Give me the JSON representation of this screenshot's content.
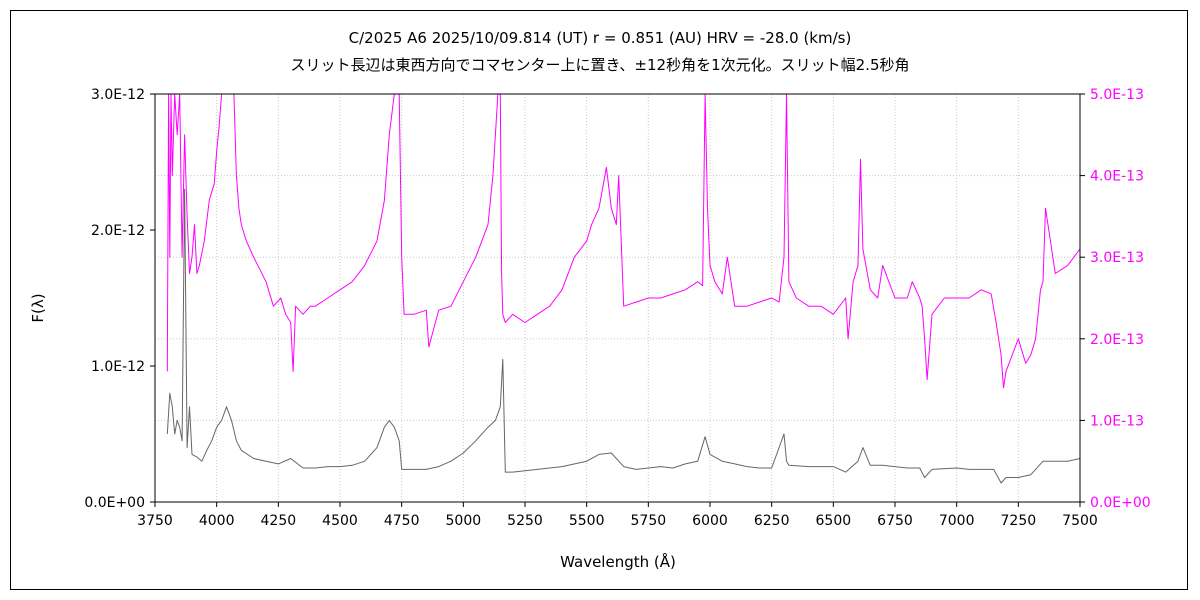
{
  "chart_data": {
    "type": "line",
    "title": "C/2025 A6    2025/10/09.814 (UT)    r = 0.851 (AU)    HRV = -28.0 (km/s)",
    "subtitle": "スリット長辺は東西方向でコマセンター上に置き、±12秒角を1次元化。スリット幅2.5秒角",
    "xlabel": "Wavelength (Å)",
    "ylabel": "F(λ)",
    "xlim": [
      3750,
      7500
    ],
    "ylim": [
      0,
      3e-12
    ],
    "y2lim": [
      0,
      5e-13
    ],
    "x_ticks": [
      "3750",
      "4000",
      "4250",
      "4500",
      "4750",
      "5000",
      "5250",
      "5500",
      "5750",
      "6000",
      "6250",
      "6500",
      "6750",
      "7000",
      "7250",
      "7500"
    ],
    "y_ticks": [
      "0.0E+00",
      "1.0E-12",
      "2.0E-12",
      "3.0E-12"
    ],
    "y2_ticks": [
      "0.0E+00",
      "1.0E-13",
      "2.0E-13",
      "3.0E-13",
      "4.0E-13",
      "5.0E-13"
    ],
    "grid": true,
    "colors": {
      "primary": "#666666",
      "secondary": "#ff00ff"
    },
    "series": [
      {
        "axis": "left",
        "color": "#666666",
        "x": [
          3800,
          3810,
          3820,
          3830,
          3840,
          3850,
          3860,
          3870,
          3880,
          3890,
          3900,
          3920,
          3940,
          3960,
          3980,
          4000,
          4020,
          4040,
          4060,
          4080,
          4100,
          4150,
          4200,
          4250,
          4300,
          4350,
          4400,
          4450,
          4500,
          4550,
          4600,
          4650,
          4680,
          4700,
          4720,
          4740,
          4750,
          4800,
          4850,
          4900,
          4950,
          5000,
          5050,
          5100,
          5130,
          5150,
          5160,
          5170,
          5200,
          5300,
          5400,
          5500,
          5550,
          5600,
          5650,
          5700,
          5750,
          5800,
          5850,
          5900,
          5950,
          5980,
          6000,
          6050,
          6100,
          6150,
          6200,
          6250,
          6300,
          6310,
          6320,
          6400,
          6500,
          6550,
          6600,
          6620,
          6650,
          6700,
          6800,
          6850,
          6870,
          6900,
          7000,
          7050,
          7100,
          7150,
          7180,
          7200,
          7250,
          7300,
          7350,
          7400,
          7450,
          7500
        ],
        "y": [
          5e-13,
          8e-13,
          7e-13,
          5e-13,
          6e-13,
          5.5e-13,
          4.5e-13,
          2.3e-12,
          4e-13,
          7e-13,
          3.5e-13,
          3.3e-13,
          3e-13,
          3.8e-13,
          4.5e-13,
          5.5e-13,
          6e-13,
          7e-13,
          6e-13,
          4.5e-13,
          3.8e-13,
          3.2e-13,
          3e-13,
          2.8e-13,
          3.2e-13,
          2.5e-13,
          2.5e-13,
          2.6e-13,
          2.6e-13,
          2.7e-13,
          3e-13,
          4e-13,
          5.5e-13,
          6e-13,
          5.5e-13,
          4.5e-13,
          2.4e-13,
          2.4e-13,
          2.4e-13,
          2.6e-13,
          3e-13,
          3.6e-13,
          4.5e-13,
          5.5e-13,
          6e-13,
          7e-13,
          1.05e-12,
          2.2e-13,
          2.2e-13,
          2.4e-13,
          2.6e-13,
          3e-13,
          3.5e-13,
          3.6e-13,
          2.6e-13,
          2.4e-13,
          2.5e-13,
          2.6e-13,
          2.5e-13,
          2.8e-13,
          3e-13,
          4.8e-13,
          3.5e-13,
          3e-13,
          2.8e-13,
          2.6e-13,
          2.5e-13,
          2.5e-13,
          5e-13,
          3e-13,
          2.7e-13,
          2.6e-13,
          2.6e-13,
          2.2e-13,
          3e-13,
          4e-13,
          2.7e-13,
          2.7e-13,
          2.5e-13,
          2.5e-13,
          1.8e-13,
          2.4e-13,
          2.5e-13,
          2.4e-13,
          2.4e-13,
          2.4e-13,
          1.4e-13,
          1.8e-13,
          1.8e-13,
          2e-13,
          3e-13,
          3e-13,
          3e-13,
          3.2e-13
        ]
      },
      {
        "axis": "right",
        "color": "#ff00ff",
        "x": [
          3800,
          3805,
          3810,
          3815,
          3820,
          3830,
          3840,
          3850,
          3860,
          3870,
          3880,
          3890,
          3900,
          3910,
          3920,
          3930,
          3950,
          3970,
          3990,
          4000,
          4010,
          4020,
          4040,
          4060,
          4070,
          4080,
          4090,
          4100,
          4120,
          4150,
          4200,
          4230,
          4260,
          4280,
          4300,
          4310,
          4320,
          4350,
          4380,
          4400,
          4450,
          4500,
          4550,
          4600,
          4650,
          4680,
          4700,
          4720,
          4740,
          4750,
          4760,
          4800,
          4850,
          4860,
          4900,
          4950,
          5000,
          5050,
          5100,
          5120,
          5140,
          5150,
          5155,
          5160,
          5170,
          5200,
          5250,
          5300,
          5350,
          5400,
          5450,
          5500,
          5520,
          5550,
          5580,
          5600,
          5620,
          5630,
          5640,
          5650,
          5700,
          5750,
          5800,
          5850,
          5900,
          5950,
          5970,
          5980,
          5990,
          6000,
          6020,
          6050,
          6070,
          6100,
          6150,
          6200,
          6250,
          6280,
          6300,
          6310,
          6320,
          6350,
          6400,
          6450,
          6500,
          6550,
          6560,
          6580,
          6600,
          6610,
          6620,
          6650,
          6680,
          6700,
          6750,
          6800,
          6820,
          6850,
          6860,
          6870,
          6880,
          6900,
          6950,
          7000,
          7050,
          7100,
          7140,
          7160,
          7180,
          7190,
          7200,
          7250,
          7280,
          7300,
          7320,
          7340,
          7350,
          7360,
          7400,
          7450,
          7500
        ],
        "y": [
          1.6e-13,
          5e-13,
          3e-13,
          5e-13,
          4e-13,
          5e-13,
          4.5e-13,
          5e-13,
          3e-13,
          4.5e-13,
          3.5e-13,
          2.8e-13,
          3e-13,
          3.4e-13,
          2.8e-13,
          2.9e-13,
          3.2e-13,
          3.7e-13,
          3.9e-13,
          4.3e-13,
          4.6e-13,
          5e-13,
          5e-13,
          5e-13,
          5e-13,
          4e-13,
          3.6e-13,
          3.4e-13,
          3.2e-13,
          3e-13,
          2.7e-13,
          2.4e-13,
          2.5e-13,
          2.3e-13,
          2.2e-13,
          1.6e-13,
          2.4e-13,
          2.3e-13,
          2.4e-13,
          2.4e-13,
          2.5e-13,
          2.6e-13,
          2.7e-13,
          2.9e-13,
          3.2e-13,
          3.7e-13,
          4.5e-13,
          5e-13,
          5e-13,
          3e-13,
          2.3e-13,
          2.3e-13,
          2.35e-13,
          1.9e-13,
          2.35e-13,
          2.4e-13,
          2.7e-13,
          3e-13,
          3.4e-13,
          4e-13,
          5e-13,
          5e-13,
          2.8e-13,
          2.3e-13,
          2.2e-13,
          2.3e-13,
          2.2e-13,
          2.3e-13,
          2.4e-13,
          2.6e-13,
          3e-13,
          3.2e-13,
          3.4e-13,
          3.6e-13,
          4.1e-13,
          3.6e-13,
          3.4e-13,
          4e-13,
          3.2e-13,
          2.4e-13,
          2.45e-13,
          2.5e-13,
          2.5e-13,
          2.55e-13,
          2.6e-13,
          2.7e-13,
          2.65e-13,
          5e-13,
          3.6e-13,
          2.9e-13,
          2.7e-13,
          2.55e-13,
          3e-13,
          2.4e-13,
          2.4e-13,
          2.45e-13,
          2.5e-13,
          2.45e-13,
          3e-13,
          5e-13,
          2.7e-13,
          2.5e-13,
          2.4e-13,
          2.4e-13,
          2.3e-13,
          2.5e-13,
          2e-13,
          2.7e-13,
          2.9e-13,
          4.2e-13,
          3.1e-13,
          2.6e-13,
          2.5e-13,
          2.9e-13,
          2.5e-13,
          2.5e-13,
          2.7e-13,
          2.5e-13,
          2.4e-13,
          2e-13,
          1.5e-13,
          2.3e-13,
          2.5e-13,
          2.5e-13,
          2.5e-13,
          2.6e-13,
          2.55e-13,
          2.2e-13,
          1.8e-13,
          1.4e-13,
          1.6e-13,
          2e-13,
          1.7e-13,
          1.8e-13,
          2e-13,
          2.6e-13,
          2.7e-13,
          3.6e-13,
          2.8e-13,
          2.9e-13,
          3.1e-13
        ]
      }
    ]
  }
}
